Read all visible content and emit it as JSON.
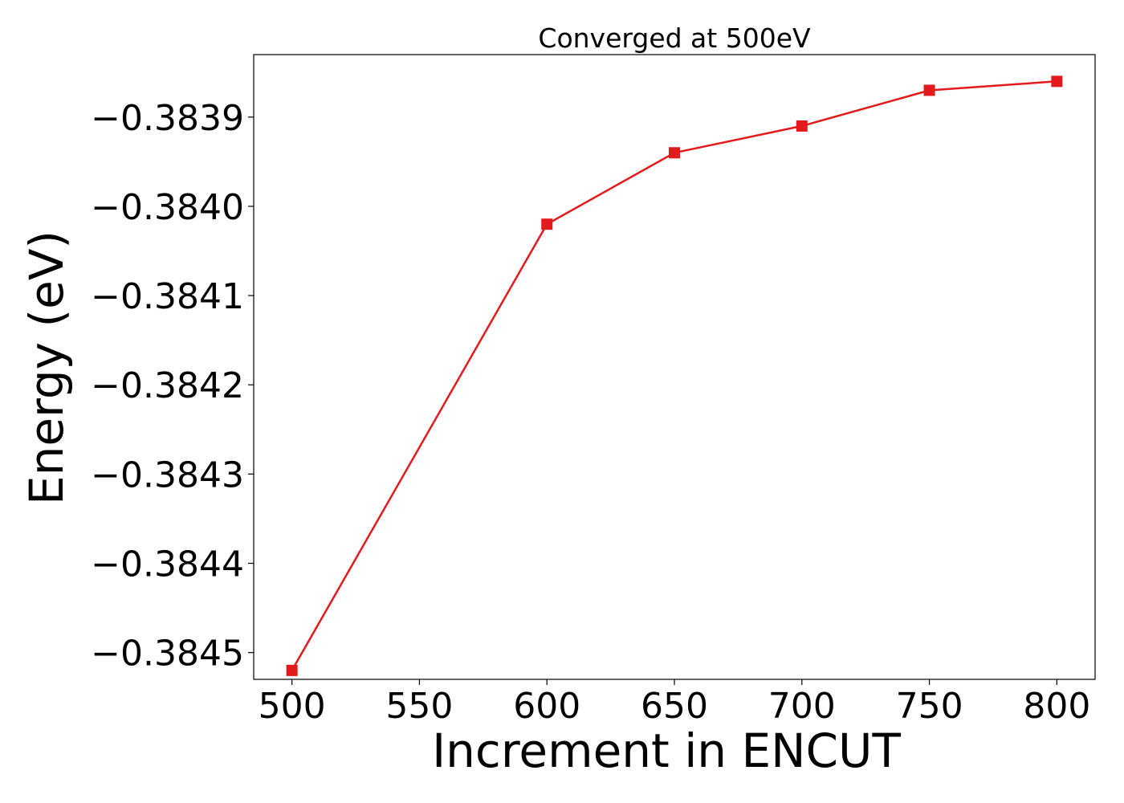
{
  "chart_data": {
    "type": "line",
    "title": "Converged at 500eV",
    "xlabel": "Increment in ENCUT",
    "ylabel": "Energy (eV)",
    "x_ticks": [
      500,
      550,
      600,
      650,
      700,
      750,
      800
    ],
    "x_tick_labels": [
      "500",
      "550",
      "600",
      "650",
      "700",
      "750",
      "800"
    ],
    "y_ticks": [
      -0.3845,
      -0.3844,
      -0.3843,
      -0.3842,
      -0.3841,
      -0.384,
      -0.3839
    ],
    "y_tick_labels": [
      "−0.3845",
      "−0.3844",
      "−0.3843",
      "−0.3842",
      "−0.3841",
      "−0.3840",
      "−0.3839"
    ],
    "xlim": [
      485,
      815
    ],
    "ylim": [
      -0.38453,
      -0.38383
    ],
    "grid": false,
    "series": [
      {
        "color": "#e31a1c",
        "marker": "square",
        "x": [
          500,
          600,
          650,
          700,
          750,
          800
        ],
        "y": [
          -0.38452,
          -0.38402,
          -0.38394,
          -0.38391,
          -0.38387,
          -0.38386
        ]
      }
    ]
  }
}
